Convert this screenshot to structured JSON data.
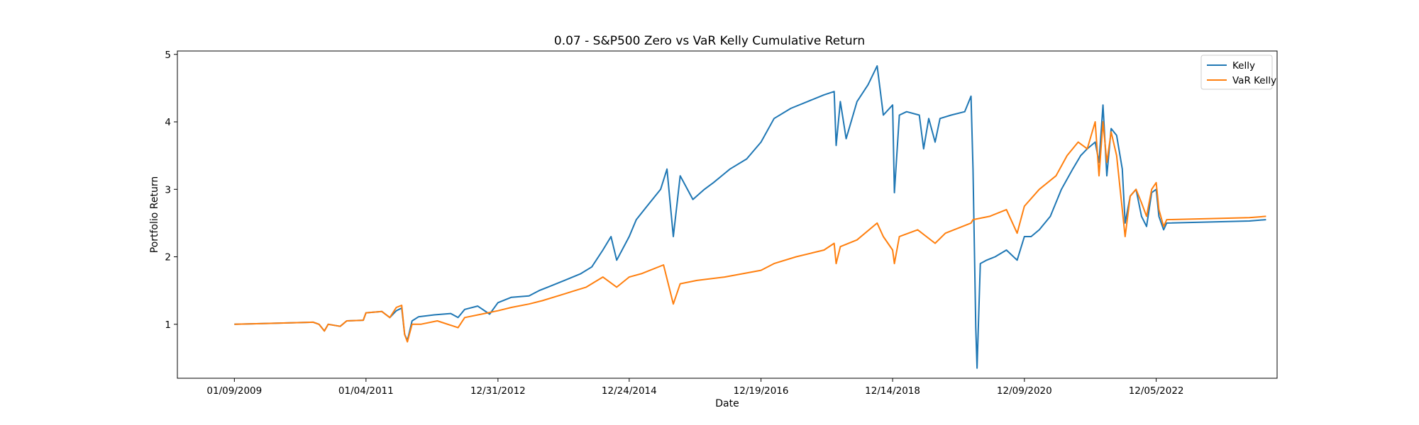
{
  "chart_data": {
    "type": "line",
    "title": "0.07 - S&P500 Zero vs VaR Kelly Cumulative Return",
    "xlabel": "Date",
    "ylabel": "Portfolio Return",
    "x_tick_labels": [
      "01/09/2009",
      "01/04/2011",
      "12/31/2012",
      "12/24/2014",
      "12/19/2016",
      "12/14/2018",
      "12/09/2020",
      "12/05/2022"
    ],
    "x_tick_dates": [
      "2009-01-09",
      "2011-01-04",
      "2012-12-31",
      "2014-12-24",
      "2016-12-19",
      "2018-12-14",
      "2020-12-09",
      "2022-12-05"
    ],
    "xlim": [
      "2008-03-01",
      "2024-10-01"
    ],
    "ylim": [
      0.2,
      5.05
    ],
    "yticks": [
      1,
      2,
      3,
      4,
      5
    ],
    "grid": false,
    "legend_position": "top-right",
    "series": [
      {
        "name": "Kelly",
        "color": "#1f77b4",
        "points": [
          [
            "2009-01-09",
            1.0
          ],
          [
            "2010-03-20",
            1.03
          ],
          [
            "2010-04-20",
            1.0
          ],
          [
            "2010-05-20",
            0.9
          ],
          [
            "2010-06-10",
            1.0
          ],
          [
            "2010-08-15",
            0.97
          ],
          [
            "2010-09-20",
            1.05
          ],
          [
            "2010-12-20",
            1.06
          ],
          [
            "2011-01-04",
            1.17
          ],
          [
            "2011-04-01",
            1.19
          ],
          [
            "2011-05-15",
            1.1
          ],
          [
            "2011-06-20",
            1.2
          ],
          [
            "2011-07-20",
            1.24
          ],
          [
            "2011-08-05",
            0.85
          ],
          [
            "2011-08-20",
            0.76
          ],
          [
            "2011-09-15",
            1.05
          ],
          [
            "2011-10-20",
            1.11
          ],
          [
            "2012-01-15",
            1.14
          ],
          [
            "2012-04-15",
            1.16
          ],
          [
            "2012-05-25",
            1.1
          ],
          [
            "2012-07-01",
            1.22
          ],
          [
            "2012-09-10",
            1.27
          ],
          [
            "2012-11-15",
            1.15
          ],
          [
            "2012-12-31",
            1.32
          ],
          [
            "2013-03-15",
            1.4
          ],
          [
            "2013-06-20",
            1.42
          ],
          [
            "2013-08-15",
            1.5
          ],
          [
            "2013-10-01",
            1.55
          ],
          [
            "2014-01-01",
            1.65
          ],
          [
            "2014-04-01",
            1.75
          ],
          [
            "2014-06-01",
            1.85
          ],
          [
            "2014-08-01",
            2.1
          ],
          [
            "2014-09-15",
            2.3
          ],
          [
            "2014-10-16",
            1.95
          ],
          [
            "2014-12-24",
            2.3
          ],
          [
            "2015-02-01",
            2.55
          ],
          [
            "2015-04-01",
            2.75
          ],
          [
            "2015-06-15",
            3.0
          ],
          [
            "2015-07-20",
            3.3
          ],
          [
            "2015-08-24",
            2.3
          ],
          [
            "2015-10-01",
            3.2
          ],
          [
            "2015-12-10",
            2.85
          ],
          [
            "2016-02-11",
            3.0
          ],
          [
            "2016-04-01",
            3.1
          ],
          [
            "2016-07-01",
            3.3
          ],
          [
            "2016-10-01",
            3.45
          ],
          [
            "2016-12-19",
            3.7
          ],
          [
            "2017-03-01",
            4.05
          ],
          [
            "2017-06-01",
            4.2
          ],
          [
            "2017-09-01",
            4.3
          ],
          [
            "2017-12-01",
            4.4
          ],
          [
            "2018-01-26",
            4.45
          ],
          [
            "2018-02-06",
            3.65
          ],
          [
            "2018-03-01",
            4.3
          ],
          [
            "2018-04-02",
            3.75
          ],
          [
            "2018-06-01",
            4.3
          ],
          [
            "2018-08-01",
            4.55
          ],
          [
            "2018-09-20",
            4.83
          ],
          [
            "2018-10-24",
            4.1
          ],
          [
            "2018-12-14",
            4.25
          ],
          [
            "2018-12-24",
            2.95
          ],
          [
            "2019-01-20",
            4.1
          ],
          [
            "2019-03-01",
            4.15
          ],
          [
            "2019-05-10",
            4.1
          ],
          [
            "2019-06-03",
            3.6
          ],
          [
            "2019-07-01",
            4.05
          ],
          [
            "2019-08-05",
            3.7
          ],
          [
            "2019-09-01",
            4.05
          ],
          [
            "2019-11-01",
            4.1
          ],
          [
            "2020-01-15",
            4.15
          ],
          [
            "2020-02-19",
            4.38
          ],
          [
            "2020-03-01",
            3.3
          ],
          [
            "2020-03-16",
            0.95
          ],
          [
            "2020-03-23",
            0.35
          ],
          [
            "2020-04-10",
            1.9
          ],
          [
            "2020-05-15",
            1.95
          ],
          [
            "2020-07-01",
            2.0
          ],
          [
            "2020-09-01",
            2.1
          ],
          [
            "2020-10-30",
            1.95
          ],
          [
            "2020-12-09",
            2.3
          ],
          [
            "2021-01-15",
            2.3
          ],
          [
            "2021-03-01",
            2.4
          ],
          [
            "2021-05-01",
            2.6
          ],
          [
            "2021-07-01",
            3.0
          ],
          [
            "2021-09-01",
            3.3
          ],
          [
            "2021-10-15",
            3.5
          ],
          [
            "2021-11-20",
            3.6
          ],
          [
            "2022-01-03",
            3.7
          ],
          [
            "2022-01-24",
            3.4
          ],
          [
            "2022-02-15",
            4.25
          ],
          [
            "2022-03-08",
            3.2
          ],
          [
            "2022-04-01",
            3.9
          ],
          [
            "2022-05-01",
            3.8
          ],
          [
            "2022-06-01",
            3.3
          ],
          [
            "2022-06-17",
            2.5
          ],
          [
            "2022-07-15",
            2.9
          ],
          [
            "2022-08-16",
            3.0
          ],
          [
            "2022-09-15",
            2.6
          ],
          [
            "2022-10-13",
            2.45
          ],
          [
            "2022-11-10",
            2.95
          ],
          [
            "2022-12-05",
            3.0
          ],
          [
            "2022-12-20",
            2.6
          ],
          [
            "2023-01-15",
            2.4
          ],
          [
            "2023-02-01",
            2.5
          ],
          [
            "2024-05-01",
            2.53
          ],
          [
            "2024-08-01",
            2.55
          ]
        ]
      },
      {
        "name": "VaR Kelly",
        "color": "#ff7f0e",
        "points": [
          [
            "2009-01-09",
            1.0
          ],
          [
            "2010-03-20",
            1.03
          ],
          [
            "2010-04-20",
            1.0
          ],
          [
            "2010-05-20",
            0.9
          ],
          [
            "2010-06-10",
            1.0
          ],
          [
            "2010-08-15",
            0.97
          ],
          [
            "2010-09-20",
            1.05
          ],
          [
            "2010-12-20",
            1.06
          ],
          [
            "2011-01-04",
            1.17
          ],
          [
            "2011-04-01",
            1.19
          ],
          [
            "2011-05-15",
            1.1
          ],
          [
            "2011-06-20",
            1.25
          ],
          [
            "2011-07-20",
            1.28
          ],
          [
            "2011-08-05",
            0.85
          ],
          [
            "2011-08-20",
            0.74
          ],
          [
            "2011-09-15",
            1.0
          ],
          [
            "2011-11-01",
            1.0
          ],
          [
            "2012-02-01",
            1.05
          ],
          [
            "2012-05-25",
            0.95
          ],
          [
            "2012-07-01",
            1.1
          ],
          [
            "2012-10-01",
            1.15
          ],
          [
            "2012-12-31",
            1.2
          ],
          [
            "2013-03-15",
            1.25
          ],
          [
            "2013-06-20",
            1.3
          ],
          [
            "2013-09-01",
            1.35
          ],
          [
            "2014-01-01",
            1.45
          ],
          [
            "2014-03-01",
            1.5
          ],
          [
            "2014-05-01",
            1.55
          ],
          [
            "2014-08-01",
            1.7
          ],
          [
            "2014-10-16",
            1.55
          ],
          [
            "2014-12-24",
            1.7
          ],
          [
            "2015-03-01",
            1.75
          ],
          [
            "2015-07-01",
            1.88
          ],
          [
            "2015-08-24",
            1.3
          ],
          [
            "2015-10-01",
            1.6
          ],
          [
            "2016-01-01",
            1.65
          ],
          [
            "2016-06-01",
            1.7
          ],
          [
            "2016-12-19",
            1.8
          ],
          [
            "2017-03-01",
            1.9
          ],
          [
            "2017-07-01",
            2.0
          ],
          [
            "2017-12-01",
            2.1
          ],
          [
            "2018-01-26",
            2.2
          ],
          [
            "2018-02-06",
            1.9
          ],
          [
            "2018-03-01",
            2.15
          ],
          [
            "2018-06-01",
            2.25
          ],
          [
            "2018-09-20",
            2.5
          ],
          [
            "2018-10-24",
            2.3
          ],
          [
            "2018-12-14",
            2.1
          ],
          [
            "2018-12-24",
            1.9
          ],
          [
            "2019-01-20",
            2.3
          ],
          [
            "2019-05-01",
            2.4
          ],
          [
            "2019-08-05",
            2.2
          ],
          [
            "2019-10-01",
            2.35
          ],
          [
            "2020-02-19",
            2.5
          ],
          [
            "2020-03-01",
            2.55
          ],
          [
            "2020-06-01",
            2.6
          ],
          [
            "2020-09-01",
            2.7
          ],
          [
            "2020-10-30",
            2.35
          ],
          [
            "2020-12-09",
            2.75
          ],
          [
            "2021-03-01",
            3.0
          ],
          [
            "2021-06-01",
            3.2
          ],
          [
            "2021-08-01",
            3.5
          ],
          [
            "2021-10-01",
            3.7
          ],
          [
            "2021-11-20",
            3.6
          ],
          [
            "2022-01-03",
            4.0
          ],
          [
            "2022-01-24",
            3.2
          ],
          [
            "2022-02-15",
            4.0
          ],
          [
            "2022-03-08",
            3.4
          ],
          [
            "2022-04-01",
            3.85
          ],
          [
            "2022-05-01",
            3.5
          ],
          [
            "2022-06-17",
            2.3
          ],
          [
            "2022-07-15",
            2.9
          ],
          [
            "2022-08-16",
            3.0
          ],
          [
            "2022-09-15",
            2.8
          ],
          [
            "2022-10-13",
            2.6
          ],
          [
            "2022-11-10",
            3.0
          ],
          [
            "2022-12-05",
            3.1
          ],
          [
            "2022-12-20",
            2.7
          ],
          [
            "2023-01-15",
            2.45
          ],
          [
            "2023-02-01",
            2.55
          ],
          [
            "2024-05-01",
            2.58
          ],
          [
            "2024-08-01",
            2.6
          ]
        ]
      }
    ]
  }
}
